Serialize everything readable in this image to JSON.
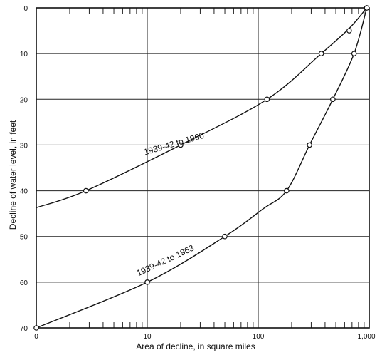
{
  "chart_data": {
    "type": "scatter",
    "xlabel": "Area of decline, in square miles",
    "ylabel": "Decline of water level, in feet",
    "x_scale": "log",
    "xlim": [
      1,
      1000
    ],
    "ylim": [
      70,
      0
    ],
    "x_tick_labels": [
      {
        "value": 1,
        "label": "0"
      },
      {
        "value": 10,
        "label": "10"
      },
      {
        "value": 100,
        "label": "100"
      },
      {
        "value": 1000,
        "label": "1,000"
      }
    ],
    "y_ticks": [
      0,
      10,
      20,
      30,
      40,
      50,
      60,
      70
    ],
    "grid": true,
    "series": [
      {
        "name": "1939-42 to 1960",
        "points": [
          {
            "x": 2.8,
            "y": 40
          },
          {
            "x": 20,
            "y": 30
          },
          {
            "x": 120,
            "y": 20
          },
          {
            "x": 370,
            "y": 10
          },
          {
            "x": 660,
            "y": 5
          },
          {
            "x": 950,
            "y": 0
          }
        ],
        "curve": [
          {
            "x": 1,
            "y": 43.7
          },
          {
            "x": 2.8,
            "y": 40
          },
          {
            "x": 20,
            "y": 30
          },
          {
            "x": 120,
            "y": 20
          },
          {
            "x": 370,
            "y": 10
          },
          {
            "x": 660,
            "y": 4.5
          },
          {
            "x": 950,
            "y": 0
          }
        ]
      },
      {
        "name": "1939-42 to 1963",
        "points": [
          {
            "x": 1,
            "y": 70
          },
          {
            "x": 10,
            "y": 60
          },
          {
            "x": 50,
            "y": 50
          },
          {
            "x": 180,
            "y": 40
          },
          {
            "x": 290,
            "y": 30
          },
          {
            "x": 470,
            "y": 20
          },
          {
            "x": 730,
            "y": 10
          },
          {
            "x": 950,
            "y": 0
          }
        ],
        "curve": [
          {
            "x": 1,
            "y": 70
          },
          {
            "x": 10,
            "y": 60
          },
          {
            "x": 50,
            "y": 50
          },
          {
            "x": 110,
            "y": 44
          },
          {
            "x": 180,
            "y": 40
          },
          {
            "x": 290,
            "y": 30
          },
          {
            "x": 470,
            "y": 20
          },
          {
            "x": 730,
            "y": 10
          },
          {
            "x": 950,
            "y": 0
          }
        ]
      }
    ],
    "curve_labels": [
      "1939-42 to 1960",
      "1939-42 to 1963"
    ]
  }
}
